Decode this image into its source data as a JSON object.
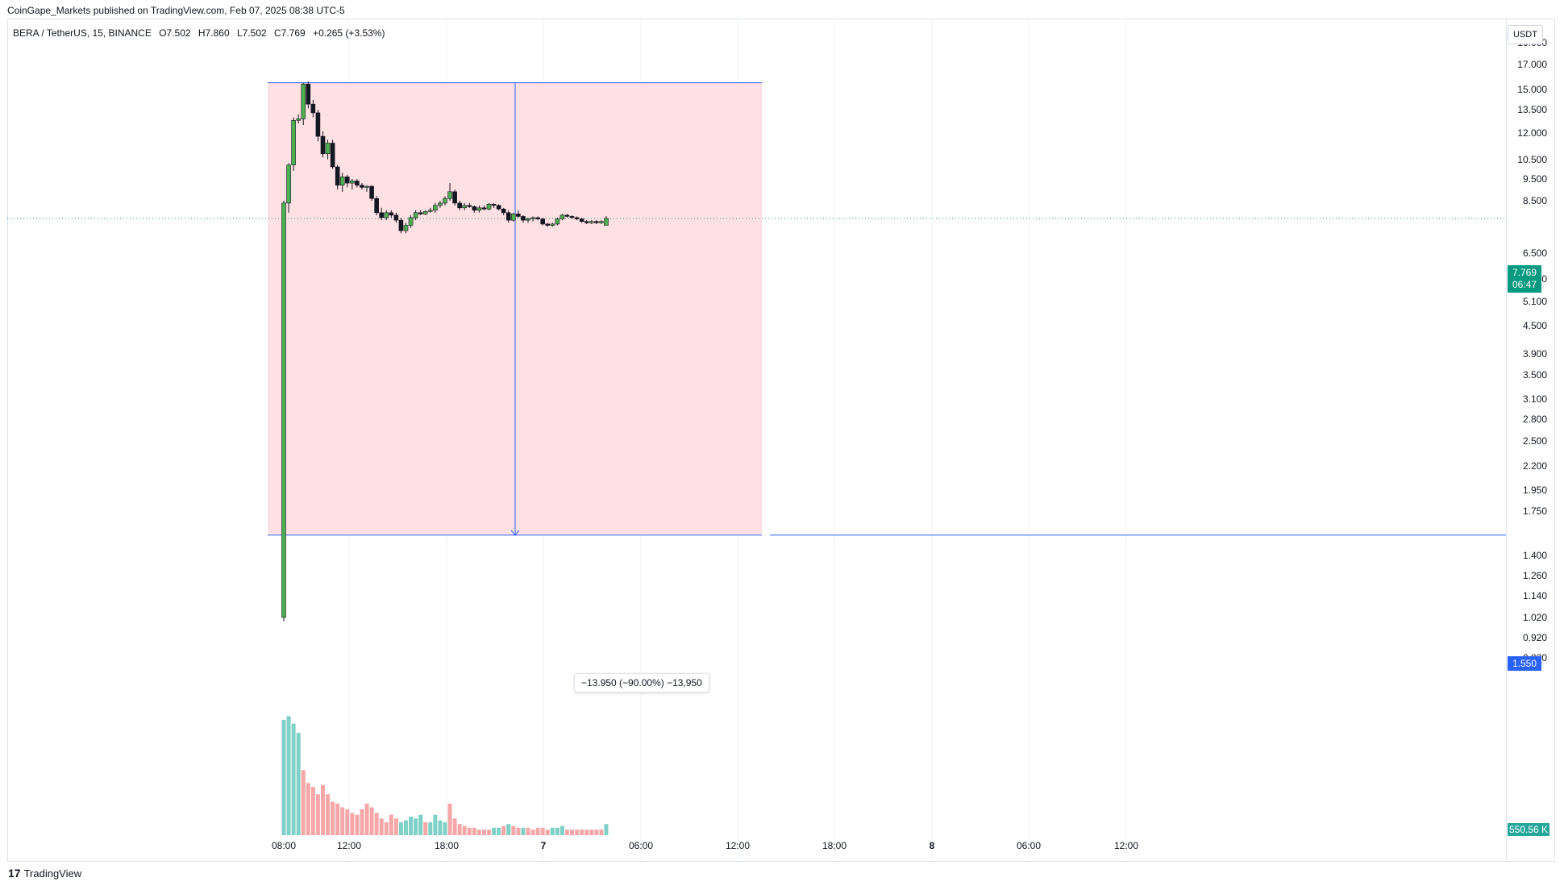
{
  "publisher_line": "CoinGape_Markets published on TradingView.com, Feb 07, 2025 08:38 UTC-5",
  "legend": {
    "symbol": "BERA / TetherUS, 15, BINANCE",
    "open": "O7.502",
    "high": "H7.860",
    "low": "L7.502",
    "close": "C7.769",
    "change": "+0.265 (+3.53%)"
  },
  "price_axis": {
    "unit": "USDT",
    "labels": [
      "19.000",
      "17.000",
      "15.000",
      "13.500",
      "12.000",
      "10.500",
      "9.500",
      "8.500",
      "6.500",
      "5.700",
      "5.100",
      "4.500",
      "3.900",
      "3.500",
      "3.100",
      "2.800",
      "2.500",
      "2.200",
      "1.950",
      "1.750",
      "1.400",
      "1.260",
      "1.140",
      "1.020",
      "0.920",
      "0.830"
    ]
  },
  "time_axis": {
    "labels": [
      {
        "text": "08:00",
        "bold": false
      },
      {
        "text": "12:00",
        "bold": false
      },
      {
        "text": "18:00",
        "bold": false
      },
      {
        "text": "7",
        "bold": true
      },
      {
        "text": "06:00",
        "bold": false
      },
      {
        "text": "12:00",
        "bold": false
      },
      {
        "text": "18:00",
        "bold": false
      },
      {
        "text": "8",
        "bold": true
      },
      {
        "text": "06:00",
        "bold": false
      },
      {
        "text": "12:00",
        "bold": false
      }
    ]
  },
  "tags": {
    "last_price": "7.769",
    "countdown": "06:47",
    "target_price": "1.550",
    "volume": "550.56 K"
  },
  "measure": {
    "text": "−13.950 (−90.00%) −13,950"
  },
  "branding": {
    "name": "TradingView",
    "mark": "17"
  },
  "colors": {
    "up": "#4caf50",
    "down": "#131722",
    "vol_up": "#7fd1c7",
    "vol_down": "#f7a7a7",
    "measure_fill": "#ffe0e3",
    "measure_line": "#2962ff",
    "last_price": "#089981"
  },
  "chart_data": {
    "type": "candlestick",
    "symbol": "BERA / TetherUS",
    "interval": "15",
    "y_scale": "log",
    "ohlc": [
      [
        1.02,
        8.5,
        1.0,
        8.4
      ],
      [
        8.4,
        10.3,
        8.0,
        10.2
      ],
      [
        10.2,
        13.0,
        9.9,
        12.8
      ],
      [
        12.8,
        13.2,
        12.6,
        12.9
      ],
      [
        12.9,
        15.5,
        12.5,
        15.4
      ],
      [
        15.4,
        15.6,
        13.6,
        13.9
      ],
      [
        13.9,
        14.2,
        13.0,
        13.3
      ],
      [
        13.3,
        13.5,
        11.5,
        11.8
      ],
      [
        11.8,
        12.1,
        10.6,
        10.8
      ],
      [
        10.8,
        11.6,
        10.5,
        11.4
      ],
      [
        11.4,
        11.6,
        10.0,
        10.1
      ],
      [
        10.1,
        10.2,
        9.0,
        9.2
      ],
      [
        9.2,
        9.8,
        8.9,
        9.6
      ],
      [
        9.6,
        9.7,
        9.1,
        9.3
      ],
      [
        9.3,
        9.5,
        9.0,
        9.4
      ],
      [
        9.4,
        9.5,
        9.1,
        9.2
      ],
      [
        9.2,
        9.3,
        9.0,
        9.1
      ],
      [
        9.1,
        9.2,
        8.9,
        9.15
      ],
      [
        9.15,
        9.2,
        8.5,
        8.6
      ],
      [
        8.6,
        8.7,
        7.9,
        8.0
      ],
      [
        8.0,
        8.2,
        7.7,
        7.8
      ],
      [
        7.8,
        8.1,
        7.7,
        8.0
      ],
      [
        8.0,
        8.1,
        7.8,
        7.9
      ],
      [
        7.9,
        8.0,
        7.6,
        7.7
      ],
      [
        7.7,
        7.8,
        7.2,
        7.3
      ],
      [
        7.3,
        7.6,
        7.2,
        7.5
      ],
      [
        7.5,
        7.9,
        7.4,
        7.8
      ],
      [
        7.8,
        8.1,
        7.7,
        8.0
      ],
      [
        8.0,
        8.1,
        7.9,
        7.95
      ],
      [
        7.95,
        8.1,
        7.9,
        8.05
      ],
      [
        8.05,
        8.2,
        8.0,
        8.1
      ],
      [
        8.1,
        8.4,
        8.0,
        8.3
      ],
      [
        8.3,
        8.5,
        8.2,
        8.4
      ],
      [
        8.4,
        8.7,
        8.3,
        8.6
      ],
      [
        8.6,
        9.3,
        8.5,
        8.9
      ],
      [
        8.9,
        9.0,
        8.3,
        8.4
      ],
      [
        8.4,
        8.5,
        8.1,
        8.2
      ],
      [
        8.2,
        8.4,
        8.1,
        8.3
      ],
      [
        8.3,
        8.4,
        8.2,
        8.25
      ],
      [
        8.25,
        8.3,
        8.0,
        8.1
      ],
      [
        8.1,
        8.3,
        8.0,
        8.2
      ],
      [
        8.2,
        8.3,
        8.1,
        8.15
      ],
      [
        8.15,
        8.4,
        8.1,
        8.35
      ],
      [
        8.35,
        8.4,
        8.2,
        8.3
      ],
      [
        8.3,
        8.35,
        8.1,
        8.15
      ],
      [
        8.15,
        8.2,
        7.9,
        8.0
      ],
      [
        8.0,
        8.1,
        7.6,
        7.7
      ],
      [
        7.7,
        8.0,
        7.65,
        7.95
      ],
      [
        7.95,
        8.1,
        7.8,
        7.85
      ],
      [
        7.85,
        7.9,
        7.6,
        7.7
      ],
      [
        7.7,
        7.8,
        7.6,
        7.75
      ],
      [
        7.75,
        7.85,
        7.65,
        7.8
      ],
      [
        7.8,
        7.85,
        7.7,
        7.75
      ],
      [
        7.75,
        7.8,
        7.5,
        7.55
      ],
      [
        7.55,
        7.6,
        7.45,
        7.5
      ],
      [
        7.5,
        7.6,
        7.45,
        7.55
      ],
      [
        7.55,
        7.8,
        7.5,
        7.75
      ],
      [
        7.75,
        7.95,
        7.7,
        7.9
      ],
      [
        7.9,
        7.95,
        7.8,
        7.85
      ],
      [
        7.85,
        7.9,
        7.75,
        7.8
      ],
      [
        7.8,
        7.85,
        7.7,
        7.75
      ],
      [
        7.75,
        7.8,
        7.6,
        7.65
      ],
      [
        7.65,
        7.7,
        7.55,
        7.6
      ],
      [
        7.6,
        7.7,
        7.55,
        7.65
      ],
      [
        7.65,
        7.7,
        7.55,
        7.6
      ],
      [
        7.6,
        7.7,
        7.55,
        7.65
      ],
      [
        7.502,
        7.86,
        7.502,
        7.769
      ]
    ],
    "volume": [
      [
        0.62,
        "up"
      ],
      [
        0.64,
        "up"
      ],
      [
        0.6,
        "up"
      ],
      [
        0.55,
        "up"
      ],
      [
        0.35,
        "down"
      ],
      [
        0.28,
        "down"
      ],
      [
        0.26,
        "down"
      ],
      [
        0.22,
        "down"
      ],
      [
        0.27,
        "down"
      ],
      [
        0.22,
        "down"
      ],
      [
        0.18,
        "down"
      ],
      [
        0.17,
        "down"
      ],
      [
        0.15,
        "down"
      ],
      [
        0.14,
        "down"
      ],
      [
        0.12,
        "down"
      ],
      [
        0.11,
        "down"
      ],
      [
        0.14,
        "down"
      ],
      [
        0.17,
        "down"
      ],
      [
        0.15,
        "down"
      ],
      [
        0.12,
        "down"
      ],
      [
        0.09,
        "down"
      ],
      [
        0.07,
        "down"
      ],
      [
        0.11,
        "down"
      ],
      [
        0.09,
        "down"
      ],
      [
        0.07,
        "up"
      ],
      [
        0.08,
        "up"
      ],
      [
        0.1,
        "up"
      ],
      [
        0.09,
        "up"
      ],
      [
        0.11,
        "up"
      ],
      [
        0.07,
        "down"
      ],
      [
        0.07,
        "up"
      ],
      [
        0.11,
        "up"
      ],
      [
        0.08,
        "up"
      ],
      [
        0.07,
        "up"
      ],
      [
        0.17,
        "down"
      ],
      [
        0.09,
        "down"
      ],
      [
        0.06,
        "down"
      ],
      [
        0.05,
        "down"
      ],
      [
        0.04,
        "down"
      ],
      [
        0.04,
        "down"
      ],
      [
        0.03,
        "down"
      ],
      [
        0.03,
        "down"
      ],
      [
        0.03,
        "down"
      ],
      [
        0.04,
        "up"
      ],
      [
        0.04,
        "up"
      ],
      [
        0.05,
        "down"
      ],
      [
        0.06,
        "up"
      ],
      [
        0.05,
        "down"
      ],
      [
        0.04,
        "down"
      ],
      [
        0.04,
        "up"
      ],
      [
        0.04,
        "down"
      ],
      [
        0.03,
        "down"
      ],
      [
        0.04,
        "down"
      ],
      [
        0.04,
        "down"
      ],
      [
        0.03,
        "down"
      ],
      [
        0.04,
        "up"
      ],
      [
        0.04,
        "up"
      ],
      [
        0.05,
        "up"
      ],
      [
        0.03,
        "down"
      ],
      [
        0.03,
        "down"
      ],
      [
        0.03,
        "down"
      ],
      [
        0.03,
        "down"
      ],
      [
        0.03,
        "down"
      ],
      [
        0.03,
        "down"
      ],
      [
        0.03,
        "down"
      ],
      [
        0.03,
        "down"
      ],
      [
        0.06,
        "up"
      ]
    ],
    "measure_from": 15.5,
    "measure_to": 1.55,
    "last_price": 7.769,
    "target_price": 1.55
  }
}
